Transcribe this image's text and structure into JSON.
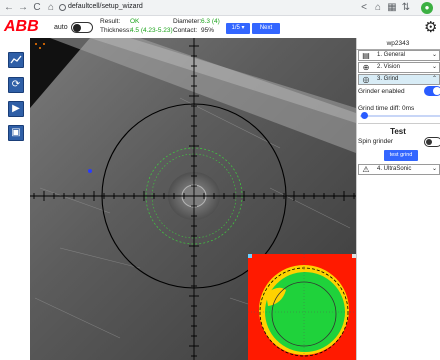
{
  "browser": {
    "back": "←",
    "forward": "→",
    "reload": "C",
    "home": "⌂",
    "url": "defaultcell/setup_wizard"
  },
  "header": {
    "logo": "ABB",
    "auto_label": "auto",
    "result_label": "Result:",
    "result_value": "OK",
    "thickness_label": "Thickness:",
    "thickness_value": "4.5 (4.23-5.23)",
    "diameter_label": "Diameter:",
    "diameter_value": "6.3 (4)",
    "contact_label": "Contact:",
    "contact_value": "95%",
    "page_select": "1/5 ▾",
    "next_label": "Next"
  },
  "panel": {
    "title": "wp2343",
    "steps": [
      {
        "label": "1. General",
        "icon": "list-icon",
        "glyph": "▤"
      },
      {
        "label": "2. Vision",
        "icon": "crosshair-icon",
        "glyph": "⊕"
      },
      {
        "label": "3. Grind",
        "icon": "grinder-icon",
        "glyph": "◎"
      },
      {
        "label": "4. UltraSonic",
        "icon": "ultrasonic-icon",
        "glyph": "⚠"
      }
    ],
    "grinder_enabled_label": "Grinder enabled",
    "grind_time_label": "Grind time diff: 0ms",
    "test_title": "Test",
    "spin_grinder_label": "Spin grinder",
    "test_grind_label": "test grind"
  },
  "colors": {
    "accent": "#3366ff",
    "abb_red": "#ff000f",
    "ok_green": "#1aa31a"
  }
}
